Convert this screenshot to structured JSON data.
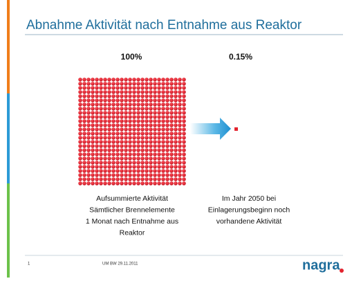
{
  "header": {
    "title": "Abnahme Aktivität nach Entnahme aus Reaktor"
  },
  "left": {
    "label": "100%",
    "caption": [
      "Aufsummierte Aktivität",
      "Sämtlicher Brennelemente",
      "1 Monat nach Entnahme aus",
      "Reaktor"
    ]
  },
  "right": {
    "label": "0.15%",
    "caption": [
      "Im Jahr 2050 bei",
      "Einlagerungsbeginn noch",
      "vorhandene Aktivität"
    ]
  },
  "footer": {
    "page": "1",
    "note": "UM BW 29.11.2011",
    "logo": "nagra"
  }
}
